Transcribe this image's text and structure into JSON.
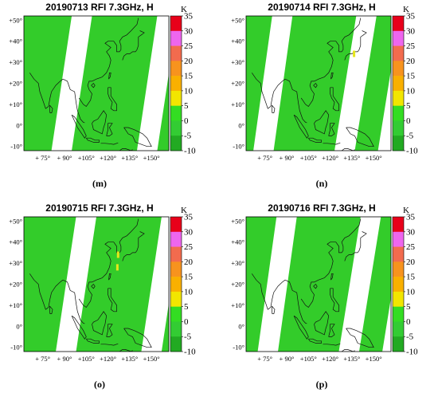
{
  "chart_data": [
    {
      "type": "heatmap",
      "title": "20190713 RFI 7.3GHz, H",
      "panel_label": "(m)",
      "lon_ticks": [
        "+ 75°",
        "+ 90°",
        "+105°",
        "+120°",
        "+135°",
        "+150°"
      ],
      "lat_ticks": [
        "+50°",
        "+40°",
        "+30°",
        "+20°",
        "+10°",
        "0°",
        "-10°"
      ],
      "colorbar": {
        "unit": "K",
        "ticks": [
          "35",
          "30",
          "25",
          "20",
          "15",
          "10",
          "5",
          "0",
          "-5",
          "-10"
        ]
      },
      "swath_gaps": [
        {
          "lon_at_south": 81,
          "lon_at_north": 95
        },
        {
          "lon_at_south": 140,
          "lon_at_north": 154
        }
      ],
      "hotspots": []
    },
    {
      "type": "heatmap",
      "title": "20190714 RFI 7.3GHz, H",
      "panel_label": "(n)",
      "lon_ticks": [
        "+ 75°",
        "+ 90°",
        "+105°",
        "+120°",
        "+135°",
        "+150°"
      ],
      "lat_ticks": [
        "+50°",
        "+40°",
        "+30°",
        "+20°",
        "+10°",
        "0°",
        "-10°"
      ],
      "colorbar": {
        "unit": "K",
        "ticks": [
          "35",
          "30",
          "25",
          "20",
          "15",
          "10",
          "5",
          "0",
          "-5",
          "-10"
        ]
      },
      "swath_gaps": [
        {
          "lon_at_south": 67,
          "lon_at_north": 80
        },
        {
          "lon_at_south": 123,
          "lon_at_north": 138
        }
      ],
      "hotspots": [
        {
          "lon": 136.5,
          "lat": 34,
          "level": "5–10"
        }
      ]
    },
    {
      "type": "heatmap",
      "title": "20190715 RFI 7.3GHz, H",
      "panel_label": "(o)",
      "lon_ticks": [
        "+ 75°",
        "+ 90°",
        "+105°",
        "+120°",
        "+135°",
        "+150°"
      ],
      "lat_ticks": [
        "+50°",
        "+40°",
        "+30°",
        "+20°",
        "+10°",
        "0°",
        "-10°"
      ],
      "colorbar": {
        "unit": "K",
        "ticks": [
          "35",
          "30",
          "25",
          "20",
          "15",
          "10",
          "5",
          "0",
          "-5",
          "-10"
        ]
      },
      "swath_gaps": [
        {
          "lon_at_south": 84,
          "lon_at_north": 98
        },
        {
          "lon_at_south": 143,
          "lon_at_north": 157
        }
      ],
      "hotspots": [
        {
          "lon": 127,
          "lat": 34,
          "level": "5–10"
        },
        {
          "lon": 126.5,
          "lat": 28,
          "level": "5–10"
        }
      ]
    },
    {
      "type": "heatmap",
      "title": "20190716 RFI 7.3GHz, H",
      "panel_label": "(p)",
      "lon_ticks": [
        "+ 75°",
        "+ 90°",
        "+105°",
        "+120°",
        "+135°",
        "+150°"
      ],
      "lat_ticks": [
        "+50°",
        "+40°",
        "+30°",
        "+20°",
        "+10°",
        "0°",
        "-10°"
      ],
      "colorbar": {
        "unit": "K",
        "ticks": [
          "35",
          "30",
          "25",
          "20",
          "15",
          "10",
          "5",
          "0",
          "-5",
          "-10"
        ]
      },
      "swath_gaps": [
        {
          "lon_at_south": 70,
          "lon_at_north": 83
        },
        {
          "lon_at_south": 126,
          "lon_at_north": 141
        }
      ],
      "hotspots": []
    }
  ],
  "colors": {
    "colorbar_bins": [
      "#e8001a",
      "#ee66ee",
      "#f26b4e",
      "#f7931e",
      "#f9b000",
      "#f2e600",
      "#33dd22",
      "#33cc33",
      "#22aa22"
    ],
    "swath_fill": "#33cc2a",
    "swath_fill_alt": "#2fc026",
    "coast": "#111111",
    "hotspot": "#e6e61a"
  }
}
